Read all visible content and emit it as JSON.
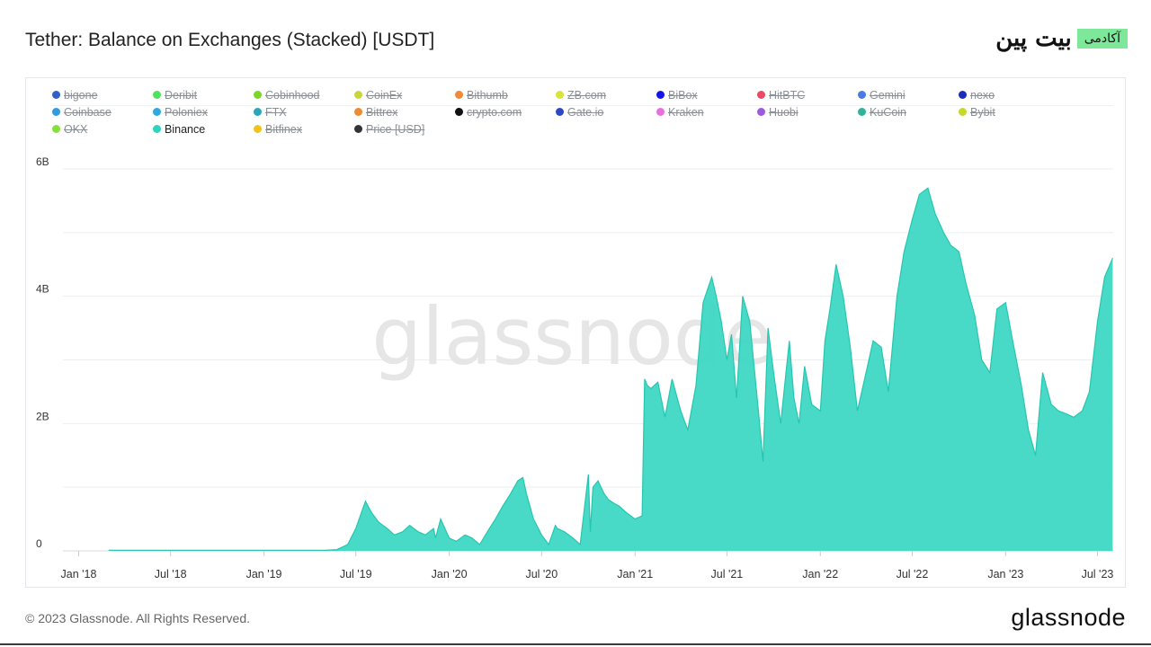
{
  "header": {
    "title": "Tether: Balance on Exchanges (Stacked) [USDT]",
    "brand_script": "بیت پین",
    "brand_badge": "آکادمی"
  },
  "colors": {
    "area": "#3ed8c3",
    "grid": "#eceef1",
    "axis_text": "#333333",
    "watermark": "#e6e6e6"
  },
  "chart_data": {
    "type": "area",
    "title": "Tether: Balance on Exchanges (Stacked) [USDT]",
    "watermark": "glassnode",
    "y_tick_labels": [
      "0",
      "2B",
      "4B",
      "6B"
    ],
    "y_ticks": [
      0,
      2000000000,
      4000000000,
      6000000000
    ],
    "ylim": [
      0,
      6000000000
    ],
    "x_tick_labels": [
      "Jan '18",
      "Jul '18",
      "Jan '19",
      "Jul '19",
      "Jan '20",
      "Jul '20",
      "Jan '21",
      "Jul '21",
      "Jan '22",
      "Jul '22",
      "Jan '23",
      "Jul '23"
    ],
    "x_ticks": [
      "2018-01-01",
      "2018-07-01",
      "2019-01-01",
      "2019-07-01",
      "2020-01-01",
      "2020-07-01",
      "2021-01-01",
      "2021-07-01",
      "2022-01-01",
      "2022-07-01",
      "2023-01-01",
      "2023-07-01"
    ],
    "xlim": [
      "2017-12-01",
      "2023-08-01"
    ],
    "grid": true,
    "legend_position": "top",
    "legend": [
      {
        "name": "bigone",
        "color": "#2f62c5",
        "visible": false
      },
      {
        "name": "Deribit",
        "color": "#4fe35b",
        "visible": false
      },
      {
        "name": "Cobinhood",
        "color": "#7bd625",
        "visible": false
      },
      {
        "name": "CoinEx",
        "color": "#c7d63d",
        "visible": false
      },
      {
        "name": "Bithumb",
        "color": "#ef8a38",
        "visible": false
      },
      {
        "name": "ZB.com",
        "color": "#d9e33a",
        "visible": false
      },
      {
        "name": "BiBox",
        "color": "#1414e6",
        "visible": false
      },
      {
        "name": "HitBTC",
        "color": "#ec4a64",
        "visible": false
      },
      {
        "name": "Gemini",
        "color": "#4a7be0",
        "visible": false
      },
      {
        "name": "nexo",
        "color": "#1c2db8",
        "visible": false
      },
      {
        "name": "Coinbase",
        "color": "#2f9be0",
        "visible": false
      },
      {
        "name": "Poloniex",
        "color": "#2ea8e2",
        "visible": false
      },
      {
        "name": "FTX",
        "color": "#2aa7b7",
        "visible": false
      },
      {
        "name": "Bittrex",
        "color": "#ef8a2e",
        "visible": false
      },
      {
        "name": "crypto.com",
        "color": "#111111",
        "visible": false
      },
      {
        "name": "Gate.io",
        "color": "#2c48c8",
        "visible": false
      },
      {
        "name": "Kraken",
        "color": "#ea6ee0",
        "visible": false
      },
      {
        "name": "Huobi",
        "color": "#9c5ae0",
        "visible": false
      },
      {
        "name": "KuCoin",
        "color": "#2fb39a",
        "visible": false
      },
      {
        "name": "Bybit",
        "color": "#c5d92a",
        "visible": false
      },
      {
        "name": "OKX",
        "color": "#86e03c",
        "visible": false
      },
      {
        "name": "Binance",
        "color": "#2cd4bf",
        "visible": true
      },
      {
        "name": "Bitfinex",
        "color": "#f2c21e",
        "visible": false
      },
      {
        "name": "Price [USD]",
        "color": "#333333",
        "visible": false
      }
    ],
    "series": [
      {
        "name": "Binance",
        "x": [
          "2018-03-01",
          "2018-06-01",
          "2018-09-01",
          "2018-12-01",
          "2019-03-01",
          "2019-05-01",
          "2019-05-25",
          "2019-06-15",
          "2019-07-01",
          "2019-07-12",
          "2019-07-20",
          "2019-08-01",
          "2019-08-15",
          "2019-09-01",
          "2019-09-15",
          "2019-10-01",
          "2019-10-15",
          "2019-11-01",
          "2019-11-15",
          "2019-12-01",
          "2019-12-05",
          "2019-12-15",
          "2020-01-01",
          "2020-01-15",
          "2020-02-01",
          "2020-02-15",
          "2020-03-01",
          "2020-03-20",
          "2020-04-01",
          "2020-04-15",
          "2020-05-01",
          "2020-05-15",
          "2020-05-25",
          "2020-06-01",
          "2020-06-15",
          "2020-07-01",
          "2020-07-15",
          "2020-07-28",
          "2020-08-01",
          "2020-08-15",
          "2020-09-01",
          "2020-09-15",
          "2020-10-01",
          "2020-10-05",
          "2020-10-10",
          "2020-10-20",
          "2020-11-01",
          "2020-11-10",
          "2020-11-20",
          "2020-12-01",
          "2020-12-15",
          "2021-01-01",
          "2021-01-15",
          "2021-01-20",
          "2021-01-25",
          "2021-02-01",
          "2021-02-15",
          "2021-03-01",
          "2021-03-15",
          "2021-04-01",
          "2021-04-15",
          "2021-05-01",
          "2021-05-15",
          "2021-06-01",
          "2021-06-10",
          "2021-06-20",
          "2021-07-01",
          "2021-07-10",
          "2021-07-20",
          "2021-08-01",
          "2021-08-15",
          "2021-09-01",
          "2021-09-10",
          "2021-09-20",
          "2021-10-01",
          "2021-10-15",
          "2021-11-01",
          "2021-11-10",
          "2021-11-20",
          "2021-12-01",
          "2021-12-15",
          "2022-01-01",
          "2022-01-10",
          "2022-01-20",
          "2022-02-01",
          "2022-02-15",
          "2022-03-01",
          "2022-03-15",
          "2022-04-01",
          "2022-04-15",
          "2022-05-01",
          "2022-05-15",
          "2022-06-01",
          "2022-06-15",
          "2022-07-01",
          "2022-07-15",
          "2022-08-01",
          "2022-08-15",
          "2022-09-01",
          "2022-09-15",
          "2022-10-01",
          "2022-10-15",
          "2022-11-01",
          "2022-11-15",
          "2022-12-01",
          "2022-12-15",
          "2023-01-01",
          "2023-01-15",
          "2023-02-01",
          "2023-02-15",
          "2023-03-01",
          "2023-03-15",
          "2023-04-01",
          "2023-04-15",
          "2023-05-01",
          "2023-05-15",
          "2023-06-01",
          "2023-06-15",
          "2023-07-01",
          "2023-07-15",
          "2023-07-31"
        ],
        "values": [
          0.01,
          0.01,
          0.01,
          0.01,
          0.01,
          0.01,
          0.02,
          0.1,
          0.35,
          0.6,
          0.78,
          0.6,
          0.45,
          0.35,
          0.25,
          0.3,
          0.4,
          0.3,
          0.25,
          0.35,
          0.2,
          0.5,
          0.2,
          0.15,
          0.25,
          0.2,
          0.1,
          0.35,
          0.5,
          0.7,
          0.9,
          1.1,
          1.15,
          0.9,
          0.5,
          0.25,
          0.1,
          0.4,
          0.35,
          0.3,
          0.2,
          0.1,
          1.2,
          0.3,
          1.0,
          1.1,
          0.9,
          0.8,
          0.75,
          0.7,
          0.6,
          0.5,
          0.55,
          2.7,
          2.6,
          2.55,
          2.65,
          2.1,
          2.7,
          2.2,
          1.9,
          2.6,
          3.9,
          4.3,
          4.0,
          3.6,
          3.0,
          3.4,
          2.4,
          4.0,
          3.6,
          2.2,
          1.4,
          3.5,
          2.8,
          2.0,
          3.3,
          2.4,
          2.0,
          2.9,
          2.3,
          2.2,
          3.3,
          3.8,
          4.5,
          4.0,
          3.2,
          2.2,
          2.8,
          3.3,
          3.2,
          2.5,
          4.0,
          4.7,
          5.2,
          5.6,
          5.7,
          5.3,
          5.0,
          4.8,
          4.7,
          4.2,
          3.7,
          3.0,
          2.8,
          3.8,
          3.9,
          3.3,
          2.6,
          1.9,
          1.5,
          2.8,
          2.3,
          2.2,
          2.15,
          2.1,
          2.2,
          2.5,
          3.6,
          4.3,
          4.6
        ]
      }
    ],
    "values_unit": "B USDT"
  },
  "footer": {
    "copyright": "© 2023 Glassnode. All Rights Reserved.",
    "logo_text": "glassnode"
  }
}
